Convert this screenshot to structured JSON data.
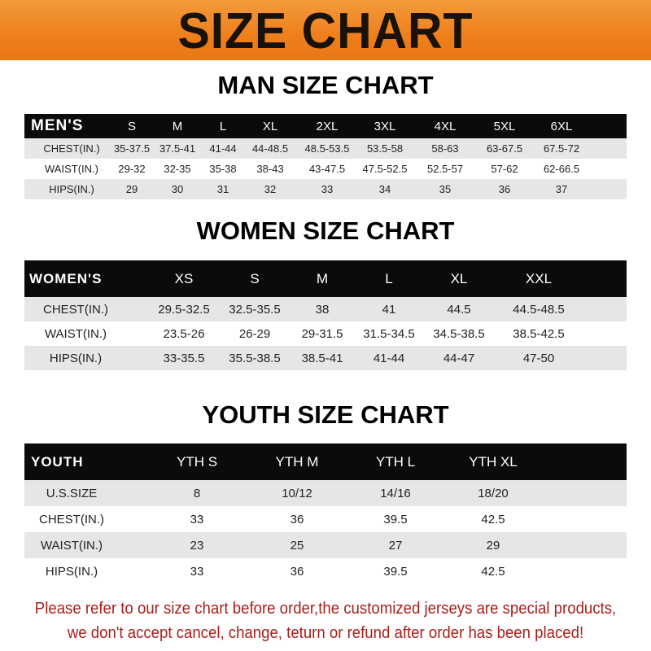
{
  "title": "SIZE CHART",
  "men": {
    "title": "MAN SIZE CHART",
    "header": [
      "MEN'S",
      "S",
      "M",
      "L",
      "XL",
      "2XL",
      "3XL",
      "4XL",
      "5XL",
      "6XL"
    ],
    "rows": [
      [
        "CHEST(IN.)",
        "35-37.5",
        "37.5-41",
        "41-44",
        "44-48.5",
        "48.5-53.5",
        "53.5-58",
        "58-63",
        "63-67.5",
        "67.5-72"
      ],
      [
        "WAIST(IN.)",
        "29-32",
        "32-35",
        "35-38",
        "38-43",
        "43-47.5",
        "47.5-52.5",
        "52.5-57",
        "57-62",
        "62-66.5"
      ],
      [
        "HIPS(IN.)",
        "29",
        "30",
        "31",
        "32",
        "33",
        "34",
        "35",
        "36",
        "37"
      ]
    ]
  },
  "women": {
    "title": "WOMEN SIZE CHART",
    "header": [
      "WOMEN'S",
      "XS",
      "S",
      "M",
      "L",
      "XL",
      "XXL"
    ],
    "rows": [
      [
        "CHEST(IN.)",
        "29.5-32.5",
        "32.5-35.5",
        "38",
        "41",
        "44.5",
        "44.5-48.5"
      ],
      [
        "WAIST(IN.)",
        "23.5-26",
        "26-29",
        "29-31.5",
        "31.5-34.5",
        "34.5-38.5",
        "38.5-42.5"
      ],
      [
        "HIPS(IN.)",
        "33-35.5",
        "35.5-38.5",
        "38.5-41",
        "41-44",
        "44-47",
        "47-50"
      ]
    ]
  },
  "youth": {
    "title": "YOUTH SIZE CHART",
    "header": [
      "YOUTH",
      "YTH S",
      "YTH M",
      "YTH L",
      "YTH XL"
    ],
    "rows": [
      [
        "U.S.SIZE",
        "8",
        "10/12",
        "14/16",
        "18/20"
      ],
      [
        "CHEST(IN.)",
        "33",
        "36",
        "39.5",
        "42.5"
      ],
      [
        "WAIST(IN.)",
        "23",
        "25",
        "27",
        "29"
      ],
      [
        "HIPS(IN.)",
        "33",
        "36",
        "39.5",
        "42.5"
      ]
    ]
  },
  "notice": {
    "line1": "Please refer to our size chart before order,the customized jerseys are special products,",
    "line2": "we don't accept cancel, change, teturn or refund after order has been placed!"
  },
  "colors": {
    "banner": "#ee7f1c",
    "header_row": "#0b0b0b",
    "stripe": "#e6e6e6",
    "notice": "#a8201a"
  }
}
